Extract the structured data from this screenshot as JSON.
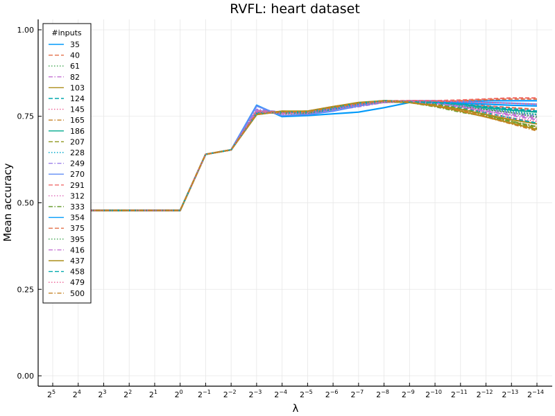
{
  "chart_data": {
    "type": "line",
    "title": "RVFL: heart dataset",
    "xlabel": "λ",
    "ylabel": "Mean accuracy",
    "ylim": [
      -0.03,
      1.03
    ],
    "yticks": [
      "0.00",
      "0.25",
      "0.50",
      "0.75",
      "1.00"
    ],
    "yticks_values": [
      0,
      0.25,
      0.5,
      0.75,
      1.0
    ],
    "x_base": "2",
    "x": [
      "5",
      "4",
      "3",
      "2",
      "1",
      "0",
      "−1",
      "−2",
      "−3",
      "−4",
      "−5",
      "−6",
      "−7",
      "−8",
      "−9",
      "−10",
      "−11",
      "−12",
      "−13",
      "−14"
    ],
    "grid": true,
    "legend_title": "#inputs",
    "legend_position": "top-left",
    "series": [
      {
        "name": "35",
        "color": "#009AFA",
        "dash": "solid",
        "values": [
          0.478,
          0.478,
          0.478,
          0.478,
          0.478,
          0.478,
          0.64,
          0.653,
          0.782,
          0.749,
          0.752,
          0.757,
          0.762,
          0.775,
          0.79,
          0.792,
          0.793,
          0.795,
          0.795,
          0.795
        ]
      },
      {
        "name": "40",
        "color": "#E36F47",
        "dash": "dash",
        "values": [
          0.478,
          0.478,
          0.478,
          0.478,
          0.478,
          0.478,
          0.64,
          0.653,
          0.766,
          0.762,
          0.76,
          0.772,
          0.785,
          0.792,
          0.795,
          0.795,
          0.79,
          0.78,
          0.775,
          0.77
        ]
      },
      {
        "name": "61",
        "color": "#3EA44E",
        "dash": "dot",
        "values": [
          0.478,
          0.478,
          0.478,
          0.478,
          0.478,
          0.478,
          0.64,
          0.653,
          0.762,
          0.76,
          0.758,
          0.77,
          0.782,
          0.795,
          0.793,
          0.788,
          0.78,
          0.77,
          0.762,
          0.755
        ]
      },
      {
        "name": "82",
        "color": "#C371D2",
        "dash": "dashdot",
        "values": [
          0.478,
          0.478,
          0.478,
          0.478,
          0.478,
          0.478,
          0.64,
          0.653,
          0.77,
          0.758,
          0.762,
          0.768,
          0.778,
          0.79,
          0.792,
          0.79,
          0.78,
          0.765,
          0.755,
          0.745
        ]
      },
      {
        "name": "103",
        "color": "#AC8D18",
        "dash": "solid",
        "values": [
          0.478,
          0.478,
          0.478,
          0.478,
          0.478,
          0.478,
          0.64,
          0.653,
          0.755,
          0.765,
          0.762,
          0.775,
          0.788,
          0.792,
          0.79,
          0.78,
          0.77,
          0.755,
          0.74,
          0.728
        ]
      },
      {
        "name": "124",
        "color": "#00A9AD",
        "dash": "dash",
        "values": [
          0.478,
          0.478,
          0.478,
          0.478,
          0.478,
          0.478,
          0.64,
          0.653,
          0.76,
          0.762,
          0.765,
          0.775,
          0.785,
          0.793,
          0.79,
          0.785,
          0.775,
          0.76,
          0.745,
          0.73
        ]
      },
      {
        "name": "145",
        "color": "#ED5E93",
        "dash": "dot",
        "values": [
          0.478,
          0.478,
          0.478,
          0.478,
          0.478,
          0.478,
          0.64,
          0.653,
          0.768,
          0.755,
          0.76,
          0.772,
          0.78,
          0.79,
          0.792,
          0.788,
          0.778,
          0.76,
          0.745,
          0.735
        ]
      },
      {
        "name": "165",
        "color": "#C68225",
        "dash": "dashdot",
        "values": [
          0.478,
          0.478,
          0.478,
          0.478,
          0.478,
          0.478,
          0.64,
          0.653,
          0.758,
          0.762,
          0.762,
          0.778,
          0.788,
          0.795,
          0.792,
          0.782,
          0.77,
          0.752,
          0.735,
          0.72
        ]
      },
      {
        "name": "186",
        "color": "#00A98D",
        "dash": "solid",
        "values": [
          0.478,
          0.478,
          0.478,
          0.478,
          0.478,
          0.478,
          0.64,
          0.653,
          0.76,
          0.76,
          0.758,
          0.77,
          0.785,
          0.795,
          0.792,
          0.79,
          0.785,
          0.775,
          0.768,
          0.762
        ]
      },
      {
        "name": "207",
        "color": "#8E971E",
        "dash": "dash",
        "values": [
          0.478,
          0.478,
          0.478,
          0.478,
          0.478,
          0.478,
          0.64,
          0.653,
          0.762,
          0.758,
          0.76,
          0.775,
          0.785,
          0.795,
          0.79,
          0.785,
          0.772,
          0.755,
          0.735,
          0.715
        ]
      },
      {
        "name": "228",
        "color": "#00A8CB",
        "dash": "dot",
        "values": [
          0.478,
          0.478,
          0.478,
          0.478,
          0.478,
          0.478,
          0.64,
          0.653,
          0.765,
          0.76,
          0.758,
          0.772,
          0.786,
          0.793,
          0.79,
          0.788,
          0.782,
          0.772,
          0.765,
          0.755
        ]
      },
      {
        "name": "249",
        "color": "#9B7FE9",
        "dash": "dashdot",
        "values": [
          0.478,
          0.478,
          0.478,
          0.478,
          0.478,
          0.478,
          0.64,
          0.653,
          0.77,
          0.762,
          0.76,
          0.768,
          0.78,
          0.79,
          0.793,
          0.79,
          0.782,
          0.77,
          0.76,
          0.75
        ]
      },
      {
        "name": "270",
        "color": "#608CF6",
        "dash": "solid",
        "values": [
          0.478,
          0.478,
          0.478,
          0.478,
          0.478,
          0.478,
          0.64,
          0.653,
          0.78,
          0.752,
          0.755,
          0.765,
          0.78,
          0.792,
          0.795,
          0.795,
          0.792,
          0.79,
          0.788,
          0.785
        ]
      },
      {
        "name": "291",
        "color": "#F06B6B",
        "dash": "dash",
        "values": [
          0.478,
          0.478,
          0.478,
          0.478,
          0.478,
          0.478,
          0.64,
          0.653,
          0.765,
          0.762,
          0.765,
          0.778,
          0.788,
          0.795,
          0.795,
          0.795,
          0.797,
          0.8,
          0.803,
          0.803
        ]
      },
      {
        "name": "312",
        "color": "#DD64B5",
        "dash": "dot",
        "values": [
          0.478,
          0.478,
          0.478,
          0.478,
          0.478,
          0.478,
          0.64,
          0.653,
          0.762,
          0.76,
          0.758,
          0.77,
          0.782,
          0.792,
          0.793,
          0.792,
          0.788,
          0.78,
          0.772,
          0.765
        ]
      },
      {
        "name": "333",
        "color": "#6B9E33",
        "dash": "dashdot",
        "values": [
          0.478,
          0.478,
          0.478,
          0.478,
          0.478,
          0.478,
          0.64,
          0.653,
          0.762,
          0.762,
          0.76,
          0.772,
          0.785,
          0.792,
          0.79,
          0.778,
          0.762,
          0.75,
          0.735,
          0.72
        ]
      },
      {
        "name": "354",
        "color": "#009AFA",
        "dash": "solid",
        "values": [
          0.478,
          0.478,
          0.478,
          0.478,
          0.478,
          0.478,
          0.64,
          0.653,
          0.76,
          0.76,
          0.762,
          0.772,
          0.785,
          0.795,
          0.792,
          0.79,
          0.788,
          0.785,
          0.782,
          0.78
        ]
      },
      {
        "name": "375",
        "color": "#E36F47",
        "dash": "dash",
        "values": [
          0.478,
          0.478,
          0.478,
          0.478,
          0.478,
          0.478,
          0.64,
          0.653,
          0.758,
          0.762,
          0.765,
          0.778,
          0.788,
          0.795,
          0.793,
          0.792,
          0.795,
          0.798,
          0.8,
          0.8
        ]
      },
      {
        "name": "395",
        "color": "#3EA44E",
        "dash": "dot",
        "values": [
          0.478,
          0.478,
          0.478,
          0.478,
          0.478,
          0.478,
          0.64,
          0.653,
          0.76,
          0.76,
          0.762,
          0.775,
          0.788,
          0.795,
          0.792,
          0.788,
          0.78,
          0.77,
          0.76,
          0.748
        ]
      },
      {
        "name": "416",
        "color": "#C371D2",
        "dash": "dashdot",
        "values": [
          0.478,
          0.478,
          0.478,
          0.478,
          0.478,
          0.478,
          0.64,
          0.653,
          0.765,
          0.758,
          0.762,
          0.775,
          0.786,
          0.793,
          0.792,
          0.788,
          0.778,
          0.765,
          0.752,
          0.74
        ]
      },
      {
        "name": "437",
        "color": "#AC8D18",
        "dash": "solid",
        "values": [
          0.478,
          0.478,
          0.478,
          0.478,
          0.478,
          0.478,
          0.64,
          0.653,
          0.755,
          0.765,
          0.765,
          0.778,
          0.79,
          0.795,
          0.79,
          0.78,
          0.765,
          0.748,
          0.73,
          0.712
        ]
      },
      {
        "name": "458",
        "color": "#00A9AD",
        "dash": "dash",
        "values": [
          0.478,
          0.478,
          0.478,
          0.478,
          0.478,
          0.478,
          0.64,
          0.653,
          0.758,
          0.762,
          0.762,
          0.775,
          0.788,
          0.795,
          0.792,
          0.79,
          0.785,
          0.778,
          0.772,
          0.765
        ]
      },
      {
        "name": "479",
        "color": "#ED5E93",
        "dash": "dot",
        "values": [
          0.478,
          0.478,
          0.478,
          0.478,
          0.478,
          0.478,
          0.64,
          0.653,
          0.762,
          0.76,
          0.762,
          0.772,
          0.784,
          0.793,
          0.795,
          0.795,
          0.792,
          0.79,
          0.788,
          0.785
        ]
      },
      {
        "name": "500",
        "color": "#C68225",
        "dash": "dashdot",
        "values": [
          0.478,
          0.478,
          0.478,
          0.478,
          0.478,
          0.478,
          0.64,
          0.653,
          0.756,
          0.763,
          0.763,
          0.776,
          0.788,
          0.795,
          0.791,
          0.78,
          0.766,
          0.748,
          0.728,
          0.708
        ]
      }
    ]
  }
}
